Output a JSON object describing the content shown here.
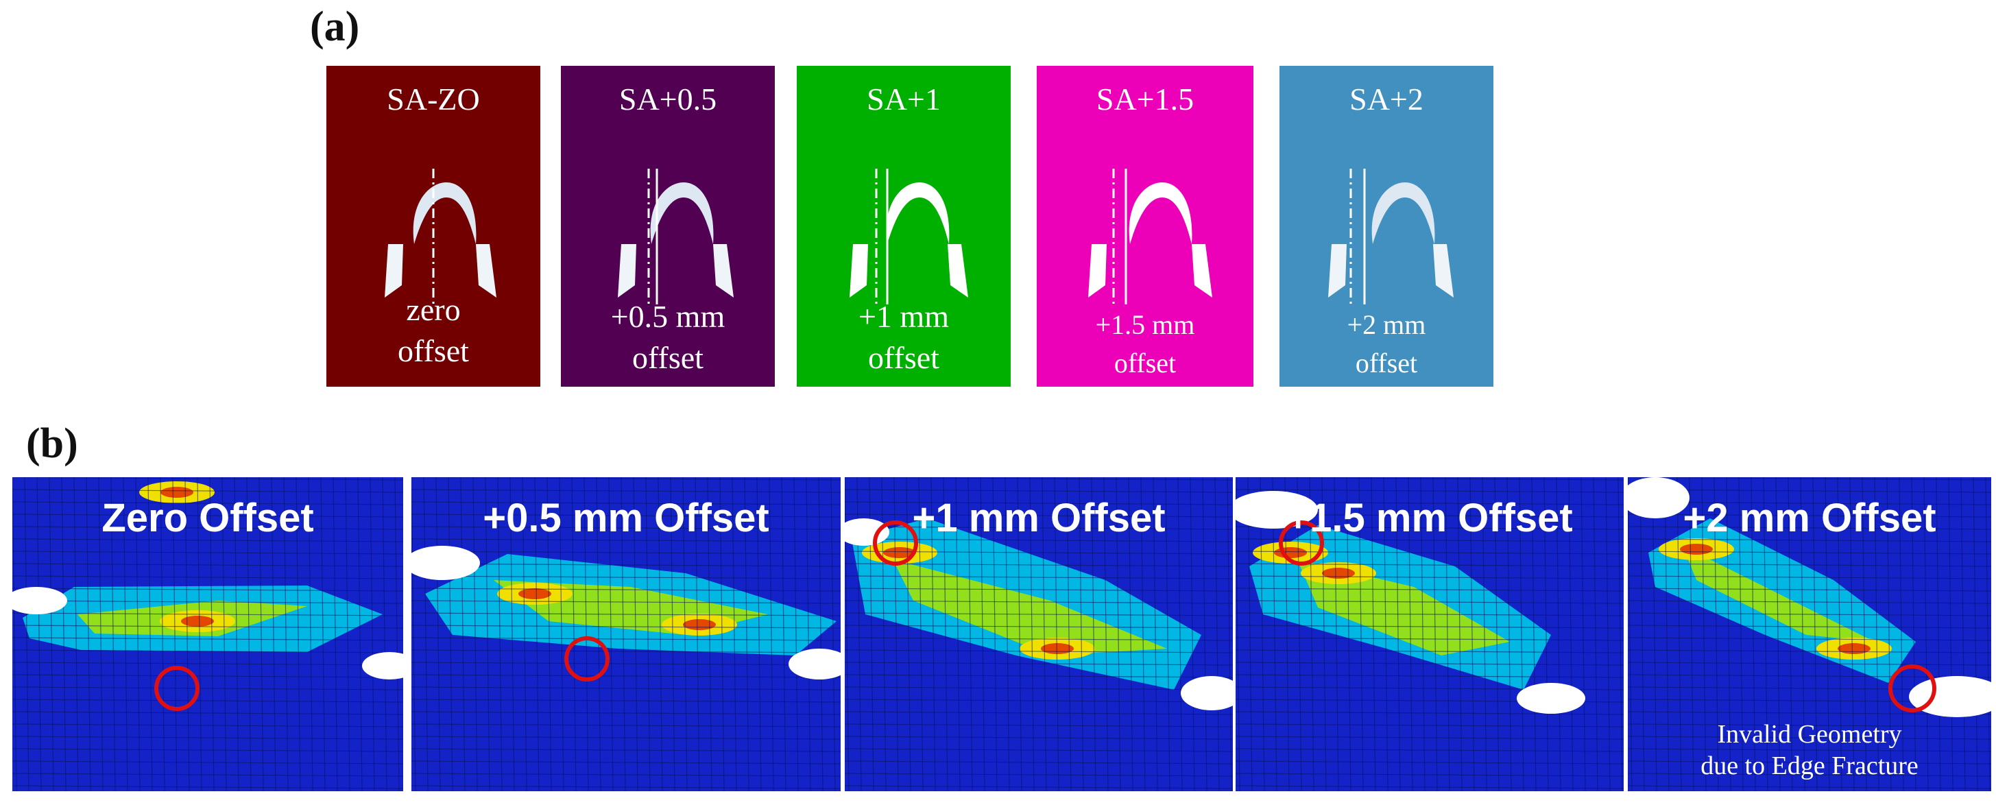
{
  "part_a": {
    "label": "(a)",
    "cards": [
      {
        "title": "SA-ZO",
        "line1": "zero",
        "line2": "offset",
        "color": "#720000"
      },
      {
        "title": "SA+0.5",
        "line1": "+0.5 mm",
        "line2": "offset",
        "color": "#520052"
      },
      {
        "title": "SA+1",
        "line1": "+1 mm",
        "line2": "offset",
        "color": "#00b000"
      },
      {
        "title": "SA+1.5",
        "line1": "+1.5 mm",
        "line2": "offset",
        "color": "#ec00b8"
      },
      {
        "title": "SA+2",
        "line1": "+2 mm",
        "line2": "offset",
        "color": "#4190c0"
      }
    ]
  },
  "part_b": {
    "label": "(b)",
    "panels": [
      {
        "title": "Zero Offset",
        "note_line1": "",
        "note_line2": ""
      },
      {
        "title": "+0.5 mm Offset",
        "note_line1": "",
        "note_line2": ""
      },
      {
        "title": "+1 mm Offset",
        "note_line1": "",
        "note_line2": ""
      },
      {
        "title": "+1.5 mm Offset",
        "note_line1": "",
        "note_line2": ""
      },
      {
        "title": "+2 mm Offset",
        "note_line1": "Invalid Geometry",
        "note_line2": "due to Edge Fracture"
      }
    ]
  },
  "colors": {
    "mesh_background": "#1323c8",
    "mesh_lines": "#0a1260",
    "highlight_circle": "#e01010",
    "contour_stops": [
      "#00c8e6",
      "#18d890",
      "#9ae010",
      "#f0e000",
      "#f07800",
      "#e02000"
    ]
  }
}
